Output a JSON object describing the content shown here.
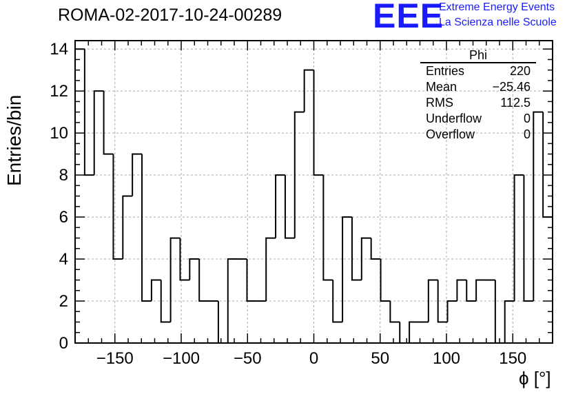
{
  "header": {
    "title": "ROMA-02-2017-10-24-00289"
  },
  "logo": {
    "mark": "EEE",
    "line1": "Extreme Energy Events",
    "line2": "La Scienza nelle Scuole",
    "color": "#1a1aff"
  },
  "stats": {
    "name": "Phi",
    "rows": [
      {
        "key": "Entries",
        "value": "220"
      },
      {
        "key": "Mean",
        "value": "−25.46"
      },
      {
        "key": "RMS",
        "value": "112.5"
      },
      {
        "key": "Underflow",
        "value": "0"
      },
      {
        "key": "Overflow",
        "value": "0"
      }
    ]
  },
  "chart_data": {
    "type": "histogram",
    "title": "ROMA-02-2017-10-24-00289",
    "xlabel": "ϕ [°]",
    "ylabel": "Entries/bin",
    "xlim": [
      -180,
      180
    ],
    "ylim": [
      0,
      14.4
    ],
    "bin_width": 7.2,
    "x_ticks": [
      -150,
      -100,
      -50,
      0,
      50,
      100,
      150
    ],
    "x_tick_labels": [
      "−150",
      "−100",
      "−50",
      "0",
      "50",
      "100",
      "150"
    ],
    "y_ticks": [
      0,
      2,
      4,
      6,
      8,
      10,
      12,
      14
    ],
    "y_tick_labels": [
      "0",
      "2",
      "4",
      "6",
      "8",
      "10",
      "12",
      "14"
    ],
    "grid": true,
    "line_color": "#000000",
    "values": [
      14,
      8,
      12,
      9,
      4,
      7,
      9,
      2,
      3,
      1,
      5,
      3,
      4,
      2,
      2,
      0,
      4,
      4,
      2,
      2,
      5,
      8,
      5,
      11,
      13,
      8,
      3,
      1,
      6,
      3,
      5,
      4,
      2,
      1,
      0,
      1,
      1,
      3,
      1,
      2,
      3,
      2,
      3,
      3,
      0,
      2,
      8,
      2,
      11,
      6
    ]
  }
}
